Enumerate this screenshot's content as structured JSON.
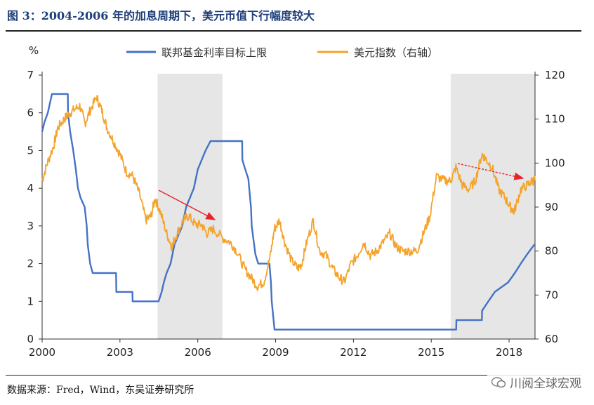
{
  "title": "图 3：2004-2006 年的加息周期下，美元币值下行幅度较大",
  "footer": "数据来源：Fred，Wind，东吴证券研究所",
  "watermark": "川阅全球宏观",
  "chart_data": {
    "type": "line",
    "left_axis_unit": "%",
    "legend": [
      "联邦基金利率目标上限",
      "美元指数（右轴）"
    ],
    "x_range": [
      2000,
      2019
    ],
    "x_ticks": [
      "2000",
      "2003",
      "2006",
      "2009",
      "2012",
      "2015",
      "2018"
    ],
    "x_tick_values": [
      2000,
      2003,
      2006,
      2009,
      2012,
      2015,
      2018
    ],
    "y_left": {
      "min": 0,
      "max": 7,
      "ticks": [
        "0",
        "1",
        "2",
        "3",
        "4",
        "5",
        "6",
        "7"
      ]
    },
    "y_right": {
      "min": 60,
      "max": 120,
      "ticks": [
        "60",
        "70",
        "80",
        "90",
        "100",
        "110",
        "120"
      ]
    },
    "shaded_periods": [
      [
        2004.45,
        2006.95
      ],
      [
        2015.75,
        2019.0
      ]
    ],
    "colors": {
      "fed": "#4472c4",
      "usd": "#f4a32b",
      "arrow": "#e8242a",
      "shade": "#e6e6e6"
    },
    "series": [
      {
        "name": "联邦基金利率目标上限",
        "axis": "left",
        "points": [
          [
            2000.0,
            5.5
          ],
          [
            2000.09,
            5.75
          ],
          [
            2000.22,
            6.0
          ],
          [
            2000.38,
            6.5
          ],
          [
            2000.99,
            6.5
          ],
          [
            2001.0,
            6.0
          ],
          [
            2001.08,
            5.5
          ],
          [
            2001.2,
            5.0
          ],
          [
            2001.3,
            4.5
          ],
          [
            2001.38,
            4.0
          ],
          [
            2001.48,
            3.75
          ],
          [
            2001.64,
            3.5
          ],
          [
            2001.72,
            3.0
          ],
          [
            2001.76,
            2.5
          ],
          [
            2001.85,
            2.0
          ],
          [
            2001.95,
            1.75
          ],
          [
            2002.85,
            1.75
          ],
          [
            2002.86,
            1.25
          ],
          [
            2003.48,
            1.25
          ],
          [
            2003.49,
            1.0
          ],
          [
            2004.49,
            1.0
          ],
          [
            2004.61,
            1.25
          ],
          [
            2004.69,
            1.5
          ],
          [
            2004.8,
            1.75
          ],
          [
            2004.95,
            2.0
          ],
          [
            2005.1,
            2.5
          ],
          [
            2005.25,
            2.75
          ],
          [
            2005.4,
            3.0
          ],
          [
            2005.55,
            3.5
          ],
          [
            2005.7,
            3.75
          ],
          [
            2005.85,
            4.0
          ],
          [
            2006.0,
            4.5
          ],
          [
            2006.15,
            4.75
          ],
          [
            2006.3,
            5.0
          ],
          [
            2006.49,
            5.25
          ],
          [
            2007.71,
            5.25
          ],
          [
            2007.72,
            4.75
          ],
          [
            2007.83,
            4.5
          ],
          [
            2007.95,
            4.25
          ],
          [
            2008.05,
            3.5
          ],
          [
            2008.08,
            3.0
          ],
          [
            2008.22,
            2.25
          ],
          [
            2008.33,
            2.0
          ],
          [
            2008.76,
            2.0
          ],
          [
            2008.82,
            1.5
          ],
          [
            2008.85,
            1.0
          ],
          [
            2008.96,
            0.25
          ],
          [
            2015.96,
            0.25
          ],
          [
            2015.97,
            0.5
          ],
          [
            2016.95,
            0.5
          ],
          [
            2016.96,
            0.75
          ],
          [
            2017.2,
            1.0
          ],
          [
            2017.45,
            1.25
          ],
          [
            2017.96,
            1.5
          ],
          [
            2018.22,
            1.75
          ],
          [
            2018.45,
            2.0
          ],
          [
            2018.7,
            2.25
          ],
          [
            2018.97,
            2.5
          ],
          [
            2019.0,
            2.5
          ]
        ]
      },
      {
        "name": "美元指数（右轴）",
        "axis": "right",
        "points": [
          [
            2000.0,
            96
          ],
          [
            2000.2,
            100
          ],
          [
            2000.45,
            104
          ],
          [
            2000.6,
            108
          ],
          [
            2000.85,
            110
          ],
          [
            2001.0,
            111
          ],
          [
            2001.2,
            112
          ],
          [
            2001.45,
            113
          ],
          [
            2001.65,
            109
          ],
          [
            2001.85,
            112
          ],
          [
            2002.1,
            115
          ],
          [
            2002.3,
            112
          ],
          [
            2002.5,
            108
          ],
          [
            2002.75,
            105
          ],
          [
            2003.0,
            102
          ],
          [
            2003.25,
            98
          ],
          [
            2003.5,
            97
          ],
          [
            2003.75,
            93
          ],
          [
            2004.0,
            87
          ],
          [
            2004.2,
            88
          ],
          [
            2004.35,
            92
          ],
          [
            2004.55,
            89
          ],
          [
            2004.8,
            84
          ],
          [
            2005.0,
            81
          ],
          [
            2005.2,
            84
          ],
          [
            2005.45,
            87
          ],
          [
            2005.65,
            88
          ],
          [
            2005.9,
            86
          ],
          [
            2006.15,
            86
          ],
          [
            2006.35,
            84
          ],
          [
            2006.6,
            85
          ],
          [
            2006.95,
            83
          ],
          [
            2007.25,
            82
          ],
          [
            2007.5,
            80
          ],
          [
            2007.8,
            76
          ],
          [
            2008.05,
            74
          ],
          [
            2008.3,
            72
          ],
          [
            2008.55,
            73
          ],
          [
            2008.8,
            79
          ],
          [
            2008.95,
            85
          ],
          [
            2009.15,
            87
          ],
          [
            2009.35,
            82
          ],
          [
            2009.6,
            78
          ],
          [
            2009.85,
            76
          ],
          [
            2010.0,
            77
          ],
          [
            2010.2,
            82
          ],
          [
            2010.45,
            87
          ],
          [
            2010.7,
            80
          ],
          [
            2010.95,
            79
          ],
          [
            2011.2,
            76
          ],
          [
            2011.45,
            74
          ],
          [
            2011.65,
            73
          ],
          [
            2011.9,
            77
          ],
          [
            2012.15,
            79
          ],
          [
            2012.4,
            82
          ],
          [
            2012.65,
            79
          ],
          [
            2012.9,
            80
          ],
          [
            2013.15,
            82
          ],
          [
            2013.4,
            84
          ],
          [
            2013.65,
            81
          ],
          [
            2013.9,
            80
          ],
          [
            2014.2,
            80
          ],
          [
            2014.45,
            80
          ],
          [
            2014.7,
            84
          ],
          [
            2014.95,
            88
          ],
          [
            2015.2,
            97
          ],
          [
            2015.5,
            96
          ],
          [
            2015.75,
            96
          ],
          [
            2015.95,
            99
          ],
          [
            2016.2,
            95
          ],
          [
            2016.45,
            94
          ],
          [
            2016.7,
            96
          ],
          [
            2016.95,
            102
          ],
          [
            2017.1,
            101
          ],
          [
            2017.35,
            99
          ],
          [
            2017.6,
            94
          ],
          [
            2017.85,
            92
          ],
          [
            2018.05,
            90
          ],
          [
            2018.2,
            89
          ],
          [
            2018.45,
            94
          ],
          [
            2018.7,
            95
          ],
          [
            2018.9,
            96
          ],
          [
            2019.0,
            96
          ]
        ]
      }
    ]
  }
}
